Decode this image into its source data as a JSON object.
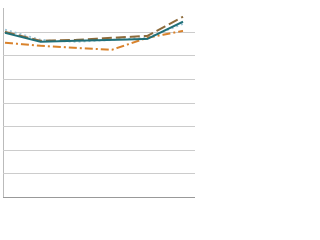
{
  "chart_data": {
    "type": "line",
    "categories": [
      null,
      null,
      null,
      null,
      null,
      null
    ],
    "ylim": [
      0,
      8
    ],
    "yticks": [
      0,
      1,
      2,
      3,
      4,
      5,
      6,
      7
    ],
    "grid": true,
    "series": [
      {
        "color": "#9fc5d6",
        "dash": "dotted",
        "values": [
          7.08,
          6.65,
          6.57,
          6.65,
          6.74,
          7.33
        ]
      },
      {
        "color": "#d9822b",
        "dash": "dashdot",
        "values": [
          6.53,
          6.4,
          6.31,
          6.23,
          6.74,
          7.03
        ]
      },
      {
        "color": "#8c6a3a",
        "dash": "dashed",
        "values": [
          6.99,
          6.61,
          6.65,
          6.74,
          6.82,
          7.63
        ]
      },
      {
        "color": "#1f6f78",
        "dash": "solid",
        "values": [
          6.95,
          6.57,
          6.61,
          6.65,
          6.69,
          7.42
        ]
      }
    ]
  }
}
